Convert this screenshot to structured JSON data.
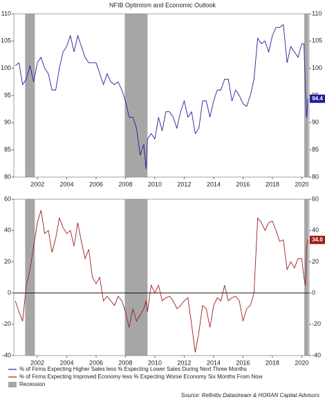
{
  "title": "NFIB Optimism and Economic Outlook",
  "source": "Source: Refinitiv Datastream & HORAN Capital Advisors",
  "recession": {
    "name": "Recession",
    "color": "#a6a6a6",
    "periods": [
      [
        2001.17,
        2001.83
      ],
      [
        2007.95,
        2009.5
      ],
      [
        2020.17,
        2020.45
      ]
    ]
  },
  "chart_data": [
    {
      "type": "line",
      "x": [
        2000.5,
        2000.75,
        2001,
        2001.25,
        2001.5,
        2001.75,
        2002,
        2002.25,
        2002.5,
        2002.75,
        2003,
        2003.25,
        2003.5,
        2003.75,
        2004,
        2004.25,
        2004.5,
        2004.75,
        2005,
        2005.25,
        2005.5,
        2005.75,
        2006,
        2006.25,
        2006.5,
        2006.75,
        2007,
        2007.25,
        2007.5,
        2007.75,
        2008,
        2008.25,
        2008.5,
        2008.75,
        2009,
        2009.25,
        2009.4,
        2009.5,
        2009.75,
        2010,
        2010.25,
        2010.5,
        2010.75,
        2011,
        2011.25,
        2011.5,
        2011.75,
        2012,
        2012.25,
        2012.5,
        2012.75,
        2013,
        2013.25,
        2013.5,
        2013.75,
        2014,
        2014.25,
        2014.5,
        2014.75,
        2015,
        2015.25,
        2015.5,
        2015.75,
        2016,
        2016.25,
        2016.5,
        2016.75,
        2017,
        2017.25,
        2017.5,
        2017.75,
        2018,
        2018.25,
        2018.5,
        2018.75,
        2019,
        2019.25,
        2019.5,
        2019.75,
        2020,
        2020.15,
        2020.25,
        2020.33,
        2020.42
      ],
      "xlim": [
        2000.4,
        2020.5
      ],
      "xticks": [
        2002,
        2004,
        2006,
        2008,
        2010,
        2012,
        2014,
        2016,
        2018,
        2020
      ],
      "ylim": [
        80,
        110
      ],
      "yticks": [
        80,
        85,
        90,
        95,
        100,
        105,
        110
      ],
      "series": [
        {
          "name": "% of Firms Expecting Higher Sales less % Expecting Lower Sales During Next Three Months",
          "color": "#1f1f9a",
          "values": [
            100.5,
            101,
            97,
            98,
            100.5,
            97.5,
            101,
            102,
            100,
            99,
            96,
            96,
            100,
            103,
            104,
            106,
            103,
            106,
            104,
            102,
            101,
            101,
            101,
            99,
            97,
            99,
            97.5,
            97,
            97.5,
            96,
            94,
            91,
            91,
            89,
            84,
            86,
            81.5,
            87,
            88,
            87,
            91,
            88.5,
            92,
            92,
            91,
            89,
            92,
            94,
            91,
            92,
            88,
            89,
            94,
            94,
            91,
            94,
            96,
            96,
            98,
            98,
            94,
            96,
            95,
            93.5,
            93,
            95,
            98,
            105.5,
            104.5,
            105,
            103,
            106,
            107.5,
            107.5,
            108,
            101,
            104,
            103,
            102,
            104.5,
            104.5,
            96,
            90.9,
            94.4
          ],
          "last_value_label": "94.4"
        }
      ]
    },
    {
      "type": "line",
      "x": [
        2000.5,
        2000.75,
        2001,
        2001.25,
        2001.5,
        2001.75,
        2002,
        2002.25,
        2002.5,
        2002.75,
        2003,
        2003.25,
        2003.5,
        2003.75,
        2004,
        2004.25,
        2004.5,
        2004.75,
        2005,
        2005.25,
        2005.5,
        2005.75,
        2006,
        2006.25,
        2006.5,
        2006.75,
        2007,
        2007.25,
        2007.5,
        2007.75,
        2008,
        2008.25,
        2008.5,
        2008.75,
        2009,
        2009.25,
        2009.4,
        2009.5,
        2009.75,
        2010,
        2010.25,
        2010.5,
        2010.75,
        2011,
        2011.25,
        2011.5,
        2011.75,
        2012,
        2012.25,
        2012.5,
        2012.75,
        2013,
        2013.25,
        2013.5,
        2013.75,
        2014,
        2014.25,
        2014.5,
        2014.75,
        2015,
        2015.25,
        2015.5,
        2015.75,
        2016,
        2016.25,
        2016.5,
        2016.75,
        2017,
        2017.25,
        2017.5,
        2017.75,
        2018,
        2018.25,
        2018.5,
        2018.75,
        2019,
        2019.25,
        2019.5,
        2019.75,
        2020,
        2020.15,
        2020.25,
        2020.33,
        2020.42
      ],
      "xlim": [
        2000.4,
        2020.5
      ],
      "xticks": [
        2002,
        2004,
        2006,
        2008,
        2010,
        2012,
        2014,
        2016,
        2018,
        2020
      ],
      "ylim": [
        -40,
        60
      ],
      "yticks": [
        -40,
        -20,
        0,
        20,
        40,
        60
      ],
      "hline": 0,
      "series": [
        {
          "name": "% of Firms Expecting Improved Economy less % Expecting Worse Economy Six Months From Now",
          "color": "#a11a1a",
          "values": [
            -5,
            -12,
            -18,
            5,
            15,
            30,
            45,
            53,
            38,
            40,
            26,
            35,
            48,
            42,
            38,
            40,
            30,
            45,
            33,
            22,
            28,
            10,
            6,
            10,
            -5,
            -2,
            -5,
            -8,
            -2,
            -5,
            -12,
            -22,
            -10,
            -18,
            -14,
            -10,
            -5,
            -12,
            5,
            0,
            5,
            -5,
            -3,
            -2,
            -5,
            -10,
            -8,
            -5,
            -3,
            -20,
            -38,
            -25,
            -8,
            -10,
            -22,
            -8,
            -3,
            -5,
            5,
            -5,
            -3,
            -2,
            -5,
            -18,
            -10,
            -8,
            0,
            48,
            45,
            40,
            45,
            46,
            40,
            33,
            34,
            15,
            20,
            16,
            22,
            22,
            10,
            5,
            30,
            34
          ],
          "last_value_label": "34.0"
        }
      ]
    }
  ]
}
